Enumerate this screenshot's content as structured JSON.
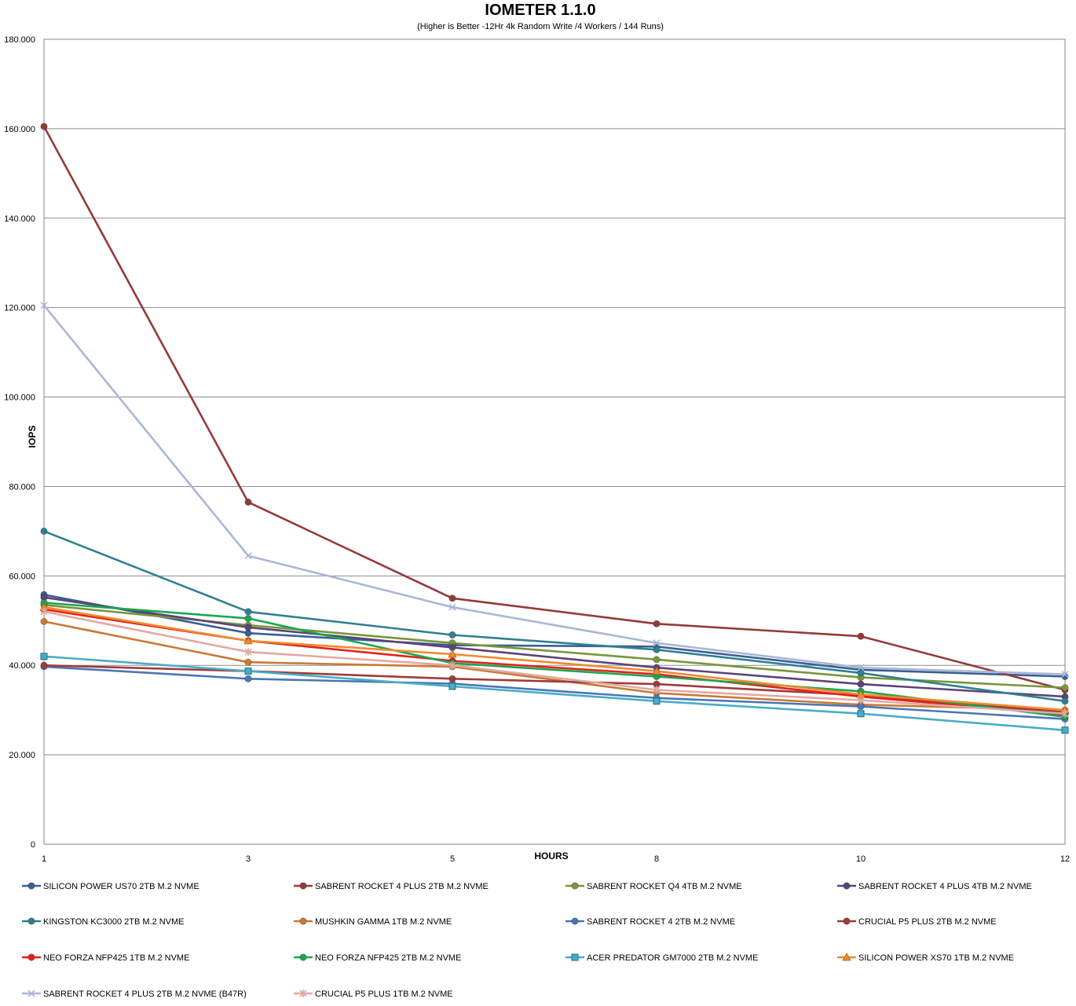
{
  "chart_data": {
    "type": "line",
    "title": "IOMETER 1.1.0",
    "subtitle": "(Higher is Better -12Hr 4k Random Write /4 Workers / 144 Runs)",
    "xlabel": "HOURS",
    "ylabel": "IOPS",
    "x": [
      1,
      3,
      5,
      8,
      10,
      12
    ],
    "ylim": [
      0,
      180000
    ],
    "y_ticks": [
      "0",
      "20.000",
      "40.000",
      "60.000",
      "80.000",
      "100.000",
      "120.000",
      "140.000",
      "160.000",
      "180.000"
    ],
    "grid": true,
    "legend_position": "bottom",
    "series": [
      {
        "name": "SILICON POWER US70 2TB M.2 NVME",
        "color": "#3a5f94",
        "marker": "circle",
        "values": [
          55800,
          47200,
          44500,
          44200,
          39000,
          37500
        ]
      },
      {
        "name": "SABRENT ROCKET 4 PLUS 2TB M.2 NVME",
        "color": "#943a3a",
        "marker": "circle",
        "values": [
          160500,
          76500,
          55000,
          49300,
          46500,
          34500
        ]
      },
      {
        "name": "SABRENT ROCKET Q4 4TB M.2 NVME",
        "color": "#78963c",
        "marker": "circle",
        "values": [
          53500,
          49000,
          45000,
          41300,
          37300,
          35000
        ]
      },
      {
        "name": "SABRENT ROCKET 4 PLUS 4TB M.2 NVME",
        "color": "#5b4478",
        "marker": "circle",
        "values": [
          55200,
          48500,
          44000,
          39500,
          35800,
          33000
        ]
      },
      {
        "name": "KINGSTON KC3000 2TB M.2 NVME",
        "color": "#2f8091",
        "marker": "circle",
        "values": [
          70000,
          52000,
          46800,
          43500,
          38300,
          32000
        ]
      },
      {
        "name": "MUSHKIN GAMMA 1TB M.2 NVME",
        "color": "#c87a35",
        "marker": "circle",
        "values": [
          49800,
          40700,
          39700,
          33800,
          31200,
          30000
        ]
      },
      {
        "name": "SABRENT ROCKET 4 2TB M.2 NVME",
        "color": "#4a76b4",
        "marker": "circle",
        "values": [
          39700,
          37000,
          35900,
          32700,
          30800,
          28000
        ]
      },
      {
        "name": "CRUCIAL P5 PLUS 2TB M.2 NVME",
        "color": "#a03a3a",
        "marker": "circle",
        "values": [
          40000,
          38700,
          37000,
          35800,
          33300,
          29500
        ]
      },
      {
        "name": "NEO FORZA NFP425 1TB M.2 NVME",
        "color": "#e8201a",
        "marker": "circle",
        "values": [
          52500,
          45500,
          41000,
          38000,
          33000,
          29000
        ]
      },
      {
        "name": "NEO FORZA NFP425 2TB M.2 NVME",
        "color": "#1aa650",
        "marker": "circle",
        "values": [
          54000,
          50500,
          40500,
          37500,
          34200,
          28500
        ]
      },
      {
        "name": "ACER PREDATOR GM7000 2TB M.2 NVME",
        "color": "#4aacc6",
        "marker": "square",
        "values": [
          42000,
          38700,
          35300,
          32000,
          29200,
          25500
        ]
      },
      {
        "name": "SILICON POWER XS70 1TB M.2 NVME",
        "color": "#f08a2d",
        "marker": "triangle",
        "values": [
          53000,
          45500,
          42500,
          38700,
          33500,
          30000
        ]
      },
      {
        "name": "SABRENT ROCKET 4 PLUS 2TB M.2 NVME (B47R)",
        "color": "#a9b7d6",
        "marker": "x",
        "values": [
          120500,
          64500,
          53000,
          45000,
          39500,
          38000
        ]
      },
      {
        "name": "CRUCIAL P5 PLUS 1TB M.2 NVME",
        "color": "#e2a8a3",
        "marker": "star",
        "values": [
          52000,
          43000,
          40000,
          34500,
          32200,
          29200
        ]
      }
    ]
  }
}
